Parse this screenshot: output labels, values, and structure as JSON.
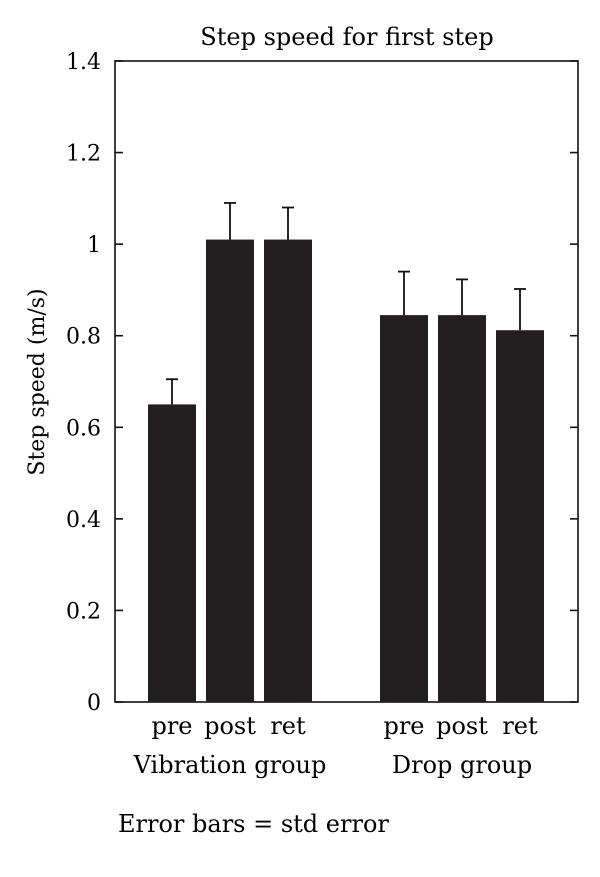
{
  "chart_data": {
    "type": "bar",
    "title": "Step speed for first step",
    "ylabel": "Step speed (m/s)",
    "xlabel": "",
    "ylim": [
      0,
      1.4
    ],
    "yticks": [
      0,
      0.2,
      0.4,
      0.6,
      0.8,
      1,
      1.2,
      1.4
    ],
    "ytick_labels": [
      "0",
      "0.2",
      "0.4",
      "0.6",
      "0.8",
      "1",
      "1.2",
      "1.4"
    ],
    "grid": false,
    "bar_color": "#231f20",
    "groups": [
      {
        "name": "Vibration group",
        "categories": [
          "pre",
          "post",
          "ret"
        ],
        "values": [
          0.65,
          1.01,
          1.01
        ],
        "errors": [
          0.055,
          0.08,
          0.07
        ]
      },
      {
        "name": "Drop group",
        "categories": [
          "pre",
          "post",
          "ret"
        ],
        "values": [
          0.845,
          0.845,
          0.812
        ],
        "errors": [
          0.095,
          0.078,
          0.09
        ]
      }
    ],
    "footnote": "Error bars = std error"
  }
}
